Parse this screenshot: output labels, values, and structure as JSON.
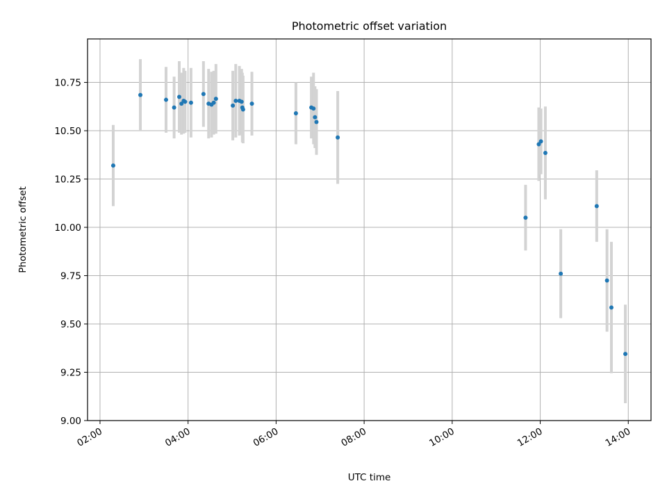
{
  "chart_data": {
    "type": "scatter",
    "title": "Photometric offset variation",
    "xlabel": "UTC time",
    "ylabel": "Photometric offset",
    "x_ticks": [
      "02:00",
      "04:00",
      "06:00",
      "08:00",
      "10:00",
      "12:00",
      "14:00"
    ],
    "x_tick_hours": [
      2,
      4,
      6,
      8,
      10,
      12,
      14
    ],
    "y_ticks": [
      "9.00",
      "9.25",
      "9.50",
      "9.75",
      "10.00",
      "10.25",
      "10.50",
      "10.75"
    ],
    "y_tick_values": [
      9.0,
      9.25,
      9.5,
      9.75,
      10.0,
      10.25,
      10.5,
      10.75
    ],
    "xlim": [
      "01:43",
      "14:31"
    ],
    "ylim": [
      9.0,
      10.975
    ],
    "grid": true,
    "x_tick_rotation_deg": 30,
    "colors": {
      "point": "#1f77b4",
      "errorbar": "#d3d3d3",
      "grid": "#b0b0b0"
    },
    "series": [
      {
        "points": [
          {
            "x": "02:18",
            "y": 10.32,
            "yerr": 0.21
          },
          {
            "x": "02:55",
            "y": 10.685,
            "yerr": 0.185
          },
          {
            "x": "03:30",
            "y": 10.66,
            "yerr": 0.17
          },
          {
            "x": "03:41",
            "y": 10.62,
            "yerr": 0.16
          },
          {
            "x": "03:48",
            "y": 10.675,
            "yerr": 0.185
          },
          {
            "x": "03:51",
            "y": 10.64,
            "yerr": 0.16
          },
          {
            "x": "03:54",
            "y": 10.655,
            "yerr": 0.17
          },
          {
            "x": "03:56",
            "y": 10.65,
            "yerr": 0.16
          },
          {
            "x": "04:04",
            "y": 10.645,
            "yerr": 0.18
          },
          {
            "x": "04:21",
            "y": 10.69,
            "yerr": 0.17
          },
          {
            "x": "04:28",
            "y": 10.64,
            "yerr": 0.18
          },
          {
            "x": "04:32",
            "y": 10.635,
            "yerr": 0.17
          },
          {
            "x": "04:35",
            "y": 10.645,
            "yerr": 0.165
          },
          {
            "x": "04:38",
            "y": 10.665,
            "yerr": 0.18
          },
          {
            "x": "05:01",
            "y": 10.63,
            "yerr": 0.18
          },
          {
            "x": "05:05",
            "y": 10.655,
            "yerr": 0.19
          },
          {
            "x": "05:10",
            "y": 10.655,
            "yerr": 0.18
          },
          {
            "x": "05:13",
            "y": 10.65,
            "yerr": 0.17
          },
          {
            "x": "05:14",
            "y": 10.62,
            "yerr": 0.18
          },
          {
            "x": "05:15",
            "y": 10.61,
            "yerr": 0.175
          },
          {
            "x": "05:27",
            "y": 10.64,
            "yerr": 0.165
          },
          {
            "x": "06:27",
            "y": 10.59,
            "yerr": 0.16
          },
          {
            "x": "06:48",
            "y": 10.62,
            "yerr": 0.16
          },
          {
            "x": "06:51",
            "y": 10.615,
            "yerr": 0.185
          },
          {
            "x": "06:53",
            "y": 10.57,
            "yerr": 0.16
          },
          {
            "x": "06:55",
            "y": 10.545,
            "yerr": 0.17
          },
          {
            "x": "07:24",
            "y": 10.465,
            "yerr": 0.24
          },
          {
            "x": "11:40",
            "y": 10.05,
            "yerr": 0.17
          },
          {
            "x": "11:58",
            "y": 10.43,
            "yerr": 0.19
          },
          {
            "x": "12:01",
            "y": 10.445,
            "yerr": 0.17
          },
          {
            "x": "12:07",
            "y": 10.385,
            "yerr": 0.24
          },
          {
            "x": "12:28",
            "y": 9.76,
            "yerr": 0.23
          },
          {
            "x": "13:17",
            "y": 10.11,
            "yerr": 0.185
          },
          {
            "x": "13:31",
            "y": 9.725,
            "yerr": 0.265
          },
          {
            "x": "13:37",
            "y": 9.585,
            "yerr": 0.34
          },
          {
            "x": "13:56",
            "y": 9.345,
            "yerr": 0.255
          }
        ]
      }
    ]
  }
}
